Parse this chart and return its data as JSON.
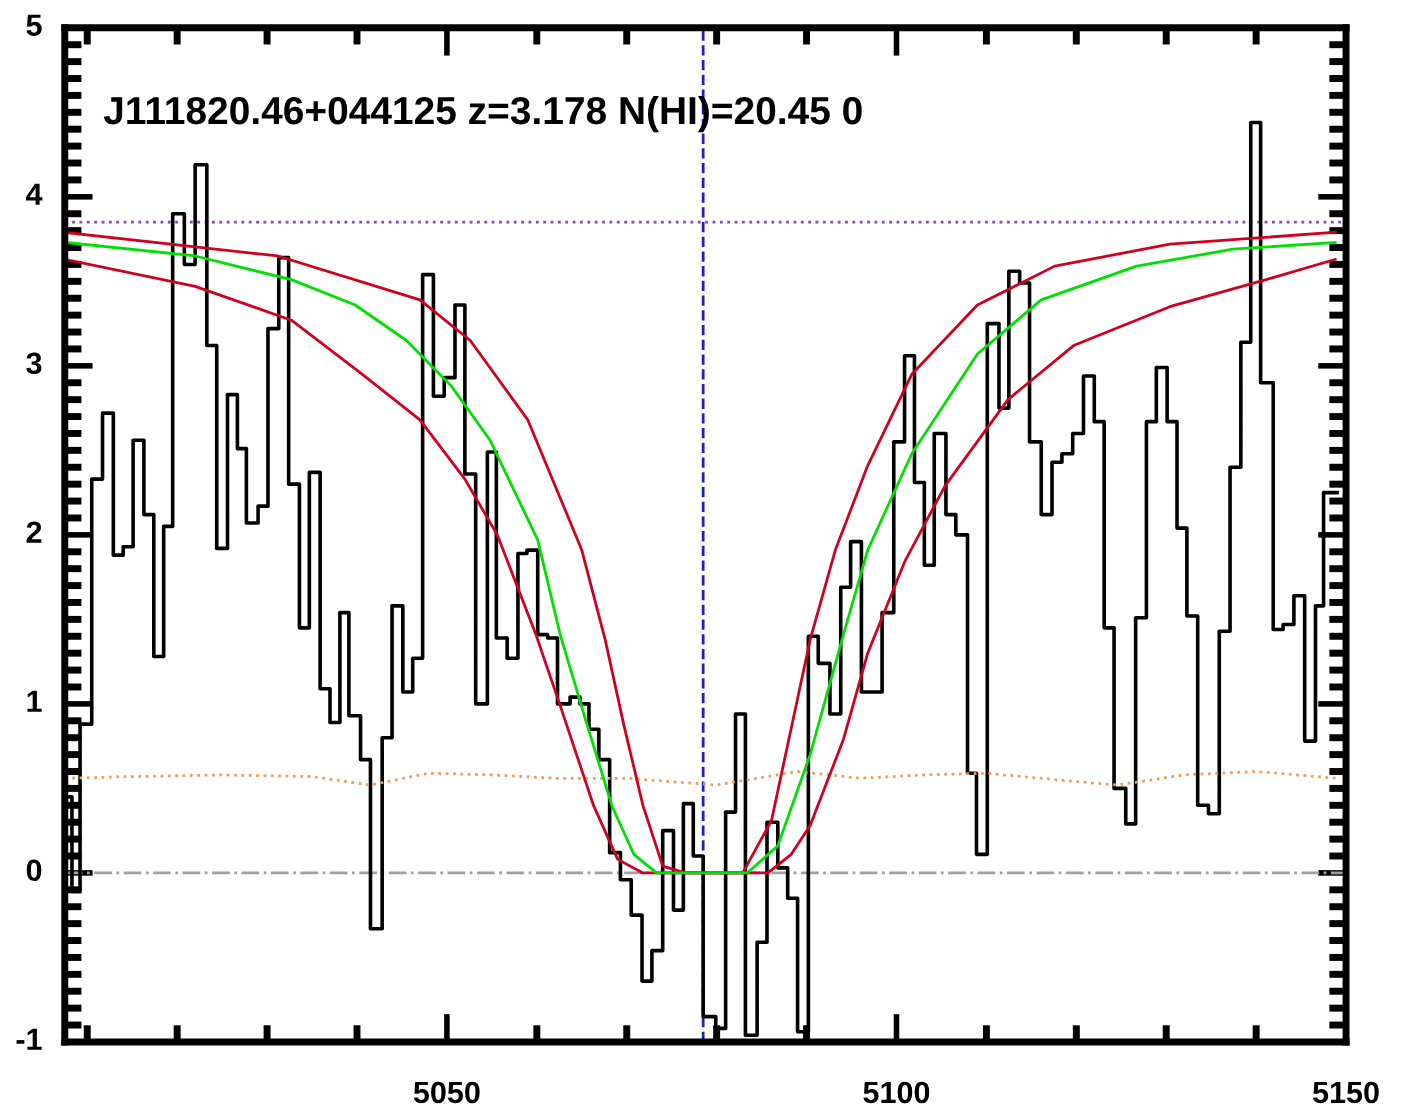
{
  "chart_data": {
    "type": "line",
    "annotations": [
      "J111820.46+044125 z=3.178 N(HI)=20.45 0"
    ],
    "xlim": [
      5007.5,
      5150
    ],
    "xticks": [
      5050,
      5100,
      5150
    ],
    "ylim": [
      -1,
      5
    ],
    "yticks": [
      -1,
      0,
      1,
      2,
      3,
      4,
      5
    ],
    "grid": false,
    "legend": false,
    "ref_lines": [
      {
        "axis": "y",
        "value": 0,
        "color": "#a0a0a0",
        "line_style": "dashdot"
      },
      {
        "axis": "y",
        "value": 3.85,
        "color": "#9040c0",
        "line_style": "dotted"
      },
      {
        "axis": "x",
        "value": 5078.5,
        "color": "#2020c0",
        "line_style": "dashed"
      }
    ],
    "series": [
      {
        "type": "step",
        "color": "#000000",
        "line_style": "solid",
        "x": [
          5007.6,
          5008.3,
          5009.2,
          5010.5,
          5011.7,
          5012.9,
          5014.0,
          5015.1,
          5016.3,
          5017.4,
          5018.5,
          5019.5,
          5020.8,
          5022.0,
          5023.3,
          5024.4,
          5025.6,
          5026.7,
          5027.7,
          5029.0,
          5030.1,
          5031.3,
          5032.4,
          5033.6,
          5034.7,
          5035.9,
          5037.0,
          5038.1,
          5039.1,
          5040.4,
          5041.5,
          5042.8,
          5043.9,
          5045.1,
          5046.2,
          5047.3,
          5048.5,
          5049.7,
          5050.9,
          5052.0,
          5053.2,
          5054.5,
          5055.5,
          5056.7,
          5057.9,
          5058.9,
          5060.1,
          5061.2,
          5062.3,
          5063.7,
          5064.8,
          5065.8,
          5066.9,
          5068.1,
          5069.3,
          5070.5,
          5071.7,
          5072.8,
          5074.0,
          5075.2,
          5076.3,
          5077.4,
          5078.5,
          5079.9,
          5081.0,
          5082.1,
          5083.2,
          5084.5,
          5085.6,
          5086.8,
          5087.9,
          5089.0,
          5090.2,
          5091.3,
          5092.6,
          5093.8,
          5094.9,
          5096.1,
          5098.4,
          5099.7,
          5100.9,
          5102.0,
          5103.1,
          5104.2,
          5105.5,
          5106.6,
          5107.9,
          5108.9,
          5110.1,
          5111.4,
          5112.5,
          5113.7,
          5114.8,
          5116.1,
          5117.3,
          5118.4,
          5119.6,
          5120.8,
          5122.0,
          5123.1,
          5124.2,
          5125.5,
          5126.6,
          5127.8,
          5128.9,
          5130.1,
          5131.2,
          5132.3,
          5133.5,
          5134.7,
          5135.9,
          5137.1,
          5138.3,
          5139.4,
          5140.5,
          5141.9,
          5143.0,
          5144.2,
          5145.4,
          5146.6,
          5147.5,
          5149.0
        ],
        "values": [
          0.45,
          -0.11,
          0.88,
          2.33,
          2.72,
          1.88,
          1.93,
          2.56,
          2.12,
          1.28,
          2.05,
          3.9,
          3.6,
          4.19,
          3.12,
          1.92,
          2.83,
          2.51,
          2.07,
          2.17,
          3.22,
          3.64,
          2.3,
          1.45,
          2.37,
          1.09,
          0.89,
          1.54,
          0.93,
          0.67,
          -0.33,
          0.8,
          1.58,
          1.07,
          1.27,
          3.54,
          2.82,
          2.93,
          3.36,
          2.36,
          1.0,
          2.49,
          1.39,
          1.27,
          1.89,
          1.91,
          1.41,
          1.39,
          1.0,
          1.04,
          1.0,
          0.85,
          0.67,
          0.12,
          -0.04,
          -0.25,
          -0.64,
          -0.46,
          0.25,
          -0.22,
          0.41,
          0.1,
          -0.85,
          -0.92,
          0.36,
          0.94,
          -0.96,
          -0.41,
          0.3,
          0.03,
          -0.15,
          -0.94,
          1.4,
          1.24,
          0.94,
          1.69,
          1.96,
          1.07,
          1.54,
          2.55,
          3.06,
          2.31,
          1.82,
          2.6,
          2.12,
          2.0,
          0.59,
          0.11,
          3.25,
          2.75,
          3.56,
          3.49,
          2.55,
          2.12,
          2.43,
          2.48,
          2.6,
          2.94,
          2.67,
          1.45,
          0.5,
          0.29,
          1.51,
          2.67,
          2.99,
          2.67,
          2.04,
          1.52,
          0.4,
          0.35,
          1.43,
          2.4,
          3.14,
          4.44,
          2.9,
          1.44,
          1.47,
          1.64,
          0.78,
          1.58,
          2.25,
          2.25
        ]
      },
      {
        "color": "#e8a060",
        "line_style": "dotted",
        "x": [
          5007.5,
          5015,
          5025,
          5035,
          5041.5,
          5048,
          5055,
          5062,
          5070,
          5080,
          5089,
          5096,
          5103,
          5110,
          5118,
          5124.5,
          5132,
          5140,
          5149
        ],
        "values": [
          0.56,
          0.57,
          0.58,
          0.57,
          0.52,
          0.59,
          0.58,
          0.56,
          0.56,
          0.52,
          0.6,
          0.56,
          0.58,
          0.59,
          0.55,
          0.52,
          0.58,
          0.6,
          0.56
        ]
      },
      {
        "color": "#d00020",
        "line_style": "solid",
        "x": [
          5007.5,
          5031.2,
          5047.0,
          5052.6,
          5059.0,
          5065.0,
          5067.6,
          5069.7,
          5071.8,
          5074.0,
          5076.5,
          5082.9,
          5086.1,
          5090.4,
          5093.2,
          5096.8,
          5101.7,
          5109.0,
          5117.6,
          5130.4,
          5148.8
        ],
        "values": [
          3.79,
          3.65,
          3.39,
          3.15,
          2.68,
          1.91,
          1.38,
          0.87,
          0.4,
          0.04,
          0,
          0,
          0.31,
          1.38,
          1.91,
          2.41,
          2.95,
          3.36,
          3.59,
          3.72,
          3.79
        ]
      },
      {
        "color": "#d00020",
        "line_style": "solid",
        "x": [
          5007.5,
          5022.0,
          5032.7,
          5040.6,
          5047.0,
          5052.0,
          5055.6,
          5059.9,
          5062.6,
          5066.3,
          5069.0,
          5071.8,
          5085.7,
          5088.3,
          5090.4,
          5094.1,
          5096.8,
          5100.9,
          5105.4,
          5112.4,
          5119.7,
          5130.4,
          5141.1,
          5148.8
        ],
        "values": [
          3.63,
          3.47,
          3.27,
          2.95,
          2.68,
          2.33,
          2.0,
          1.41,
          0.99,
          0.4,
          0.08,
          0,
          0,
          0.11,
          0.28,
          0.79,
          1.3,
          1.84,
          2.29,
          2.8,
          3.12,
          3.35,
          3.51,
          3.63
        ]
      },
      {
        "color": "#00e000",
        "line_style": "solid",
        "x": [
          5007.6,
          5022.0,
          5032.7,
          5039.8,
          5045.5,
          5050.5,
          5054.8,
          5060.1,
          5062.6,
          5065.4,
          5068.4,
          5070.8,
          5073.3,
          5083.4,
          5086.8,
          5090.4,
          5094.1,
          5096.8,
          5101.7,
          5109.0,
          5116.1,
          5126.7,
          5137.4,
          5148.8
        ],
        "values": [
          3.73,
          3.65,
          3.51,
          3.36,
          3.15,
          2.88,
          2.56,
          1.97,
          1.41,
          0.91,
          0.39,
          0.11,
          0,
          0,
          0.16,
          0.7,
          1.41,
          1.91,
          2.48,
          3.07,
          3.39,
          3.59,
          3.69,
          3.73
        ]
      }
    ]
  }
}
